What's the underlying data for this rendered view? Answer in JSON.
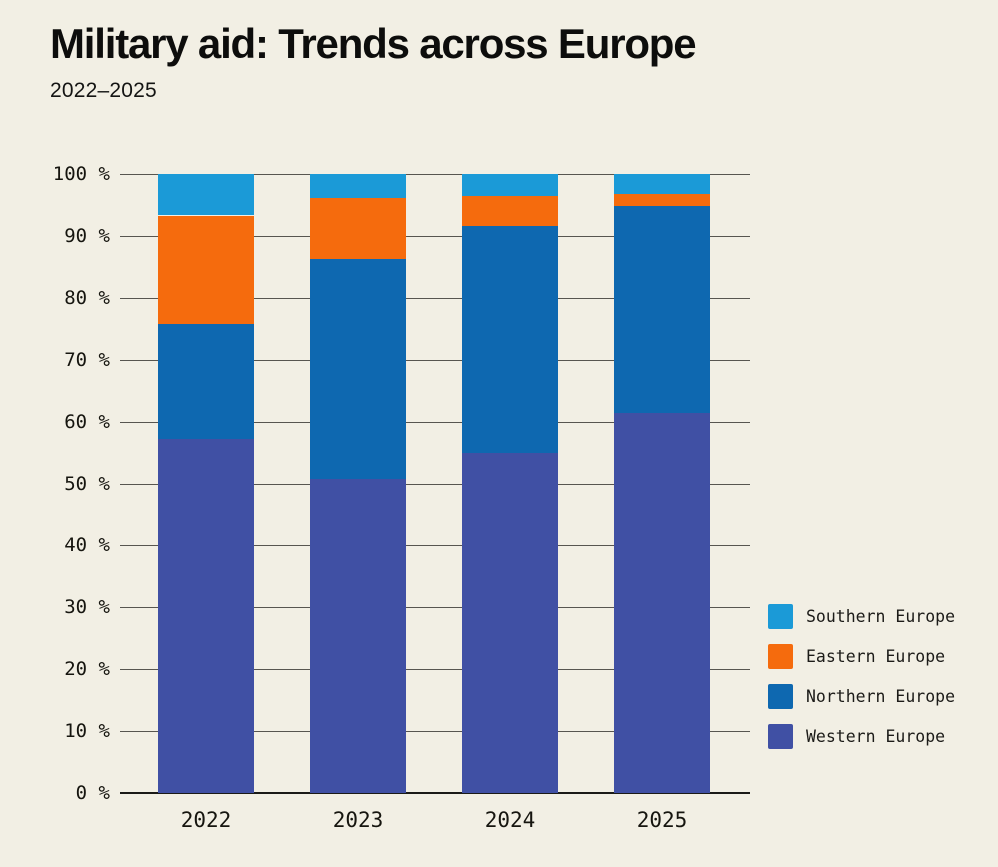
{
  "header": {
    "title": "Military aid: Trends across Europe",
    "subtitle": "2022–2025"
  },
  "colors": {
    "background": "#f2efe4",
    "gridline": "#57554f",
    "axis_line": "#1b1a17",
    "label_text": "#16150f"
  },
  "chart_data": {
    "type": "bar",
    "variant": "stacked-percent-column",
    "title": "Military aid: Trends across Europe",
    "subtitle": "2022–2025",
    "categories": [
      "2022",
      "2023",
      "2024",
      "2025"
    ],
    "series": [
      {
        "name": "Western Europe",
        "color": "#4050a4",
        "values": [
          57.2,
          50.7,
          55.0,
          61.4
        ]
      },
      {
        "name": "Northern Europe",
        "color": "#0e68b0",
        "values": [
          18.6,
          35.5,
          36.6,
          33.4
        ]
      },
      {
        "name": "Eastern Europe",
        "color": "#f56b0d",
        "values": [
          17.5,
          10.0,
          4.8,
          2.0
        ]
      },
      {
        "name": "Southern Europe",
        "color": "#1b9ad7",
        "values": [
          6.7,
          3.8,
          3.6,
          3.2
        ]
      }
    ],
    "ylim": [
      0,
      100
    ],
    "yticks": [
      0,
      10,
      20,
      30,
      40,
      50,
      60,
      70,
      80,
      90,
      100
    ],
    "ytick_suffix": " %",
    "grid": "horizontal",
    "legend": {
      "position": "right-bottom",
      "entries_top_to_bottom": [
        "Southern Europe",
        "Eastern Europe",
        "Northern Europe",
        "Western Europe"
      ]
    }
  }
}
